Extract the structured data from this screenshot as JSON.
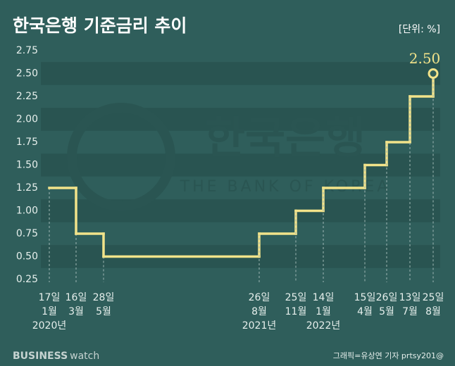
{
  "chart_data": {
    "type": "step",
    "title": "한국은행 기준금리 추이",
    "unit": "[단위: %]",
    "watermark": [
      "한국은행",
      "THE BANK OF KOREA"
    ],
    "categories": [
      [
        "17일",
        "1월",
        "2020년"
      ],
      [
        "16일",
        "3월"
      ],
      [
        "28일",
        "5월"
      ],
      [
        "26일",
        "8월",
        "2021년"
      ],
      [
        "25일",
        "11월"
      ],
      [
        "14일",
        "1월",
        "2022년"
      ],
      [
        "15일",
        "4월"
      ],
      [
        "26일",
        "5월"
      ],
      [
        "13일",
        "7월"
      ],
      [
        "25일",
        "8월"
      ]
    ],
    "series": [
      {
        "name": "기준금리",
        "color": "#f2e38a",
        "values": [
          1.25,
          0.75,
          0.5,
          0.75,
          1.0,
          1.25,
          1.5,
          1.75,
          2.25,
          2.5
        ],
        "value_labels": [
          null,
          null,
          null,
          null,
          null,
          null,
          null,
          null,
          null,
          "2.50"
        ]
      }
    ],
    "ylim": [
      0.25,
      2.75
    ],
    "yticks": [
      {
        "value": 2.75,
        "label": "2.75"
      },
      {
        "value": 2.5,
        "label": "2.50"
      },
      {
        "value": 2.25,
        "label": "2.25"
      },
      {
        "value": 2.0,
        "label": "2.00"
      },
      {
        "value": 1.75,
        "label": "1.75"
      },
      {
        "value": 1.5,
        "label": "1.50"
      },
      {
        "value": 1.25,
        "label": "1.25"
      },
      {
        "value": 1.0,
        "label": "1.00"
      },
      {
        "value": 0.75,
        "label": "0.75"
      },
      {
        "value": 0.5,
        "label": "0.50"
      },
      {
        "value": 0.25,
        "label": "0.25"
      }
    ],
    "grid": true,
    "footer": {
      "brand": [
        "BUSINESS",
        "watch"
      ],
      "credit": "그래픽=유상연 기자 prtsy201@"
    }
  }
}
